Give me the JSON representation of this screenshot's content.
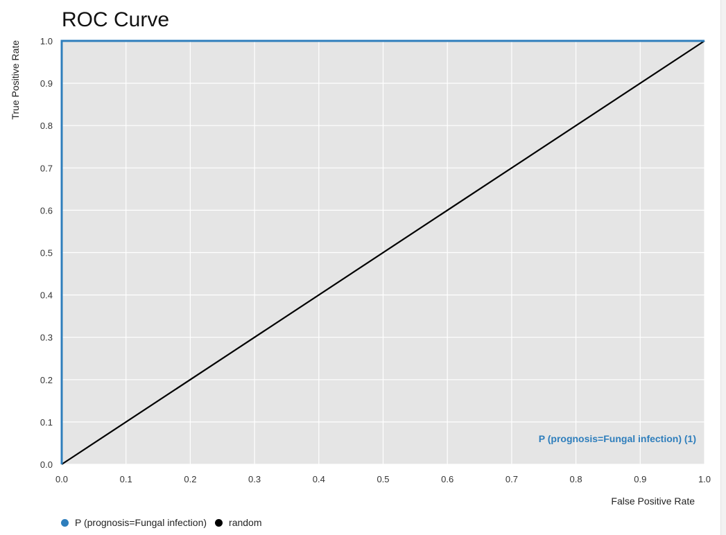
{
  "chart_data": {
    "type": "line",
    "title": "ROC Curve",
    "xlabel": "False Positive Rate",
    "ylabel": "True Positive Rate",
    "xlim": [
      0,
      1
    ],
    "ylim": [
      0,
      1
    ],
    "x_ticks": [
      "0.0",
      "0.1",
      "0.2",
      "0.3",
      "0.4",
      "0.5",
      "0.6",
      "0.7",
      "0.8",
      "0.9",
      "1.0"
    ],
    "y_ticks": [
      "0.0",
      "0.1",
      "0.2",
      "0.3",
      "0.4",
      "0.5",
      "0.6",
      "0.7",
      "0.8",
      "0.9",
      "1.0"
    ],
    "grid": true,
    "legend_position": "bottom-left",
    "series": [
      {
        "name": "P (prognosis=Fungal infection)",
        "color": "#2e7ebc",
        "x": [
          0,
          0,
          1
        ],
        "y": [
          0,
          1,
          1
        ]
      },
      {
        "name": "random",
        "color": "#000000",
        "x": [
          0,
          1
        ],
        "y": [
          0,
          1
        ]
      }
    ],
    "annotations": [
      {
        "text": "P (prognosis=Fungal infection) (1)",
        "color": "#2e7ebc",
        "position": "bottom-right"
      }
    ]
  }
}
